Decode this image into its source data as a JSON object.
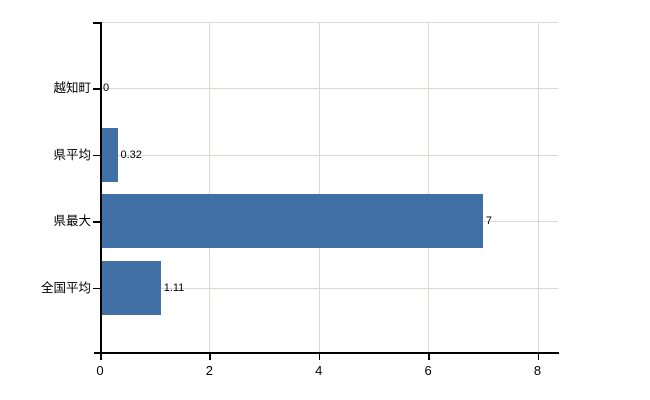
{
  "chart_data": {
    "type": "bar",
    "orientation": "horizontal",
    "title": "",
    "xlabel": "",
    "ylabel": "",
    "categories": [
      "越知町",
      "県平均",
      "県最大",
      "全国平均"
    ],
    "values": [
      0,
      0.32,
      7,
      1.11
    ],
    "value_labels": [
      "0",
      "0.32",
      "7",
      "1.11"
    ],
    "xticks": [
      0,
      2,
      4,
      6,
      8
    ],
    "xtick_labels": [
      "0",
      "2",
      "4",
      "6",
      "8"
    ],
    "xlim": [
      0,
      8.4
    ],
    "grid": true,
    "legend": false,
    "colors": {
      "bar": "#4170a6",
      "grid": "#d7dbd3",
      "axis": "#000000",
      "text": "#000000",
      "background": "#ffffff"
    }
  }
}
